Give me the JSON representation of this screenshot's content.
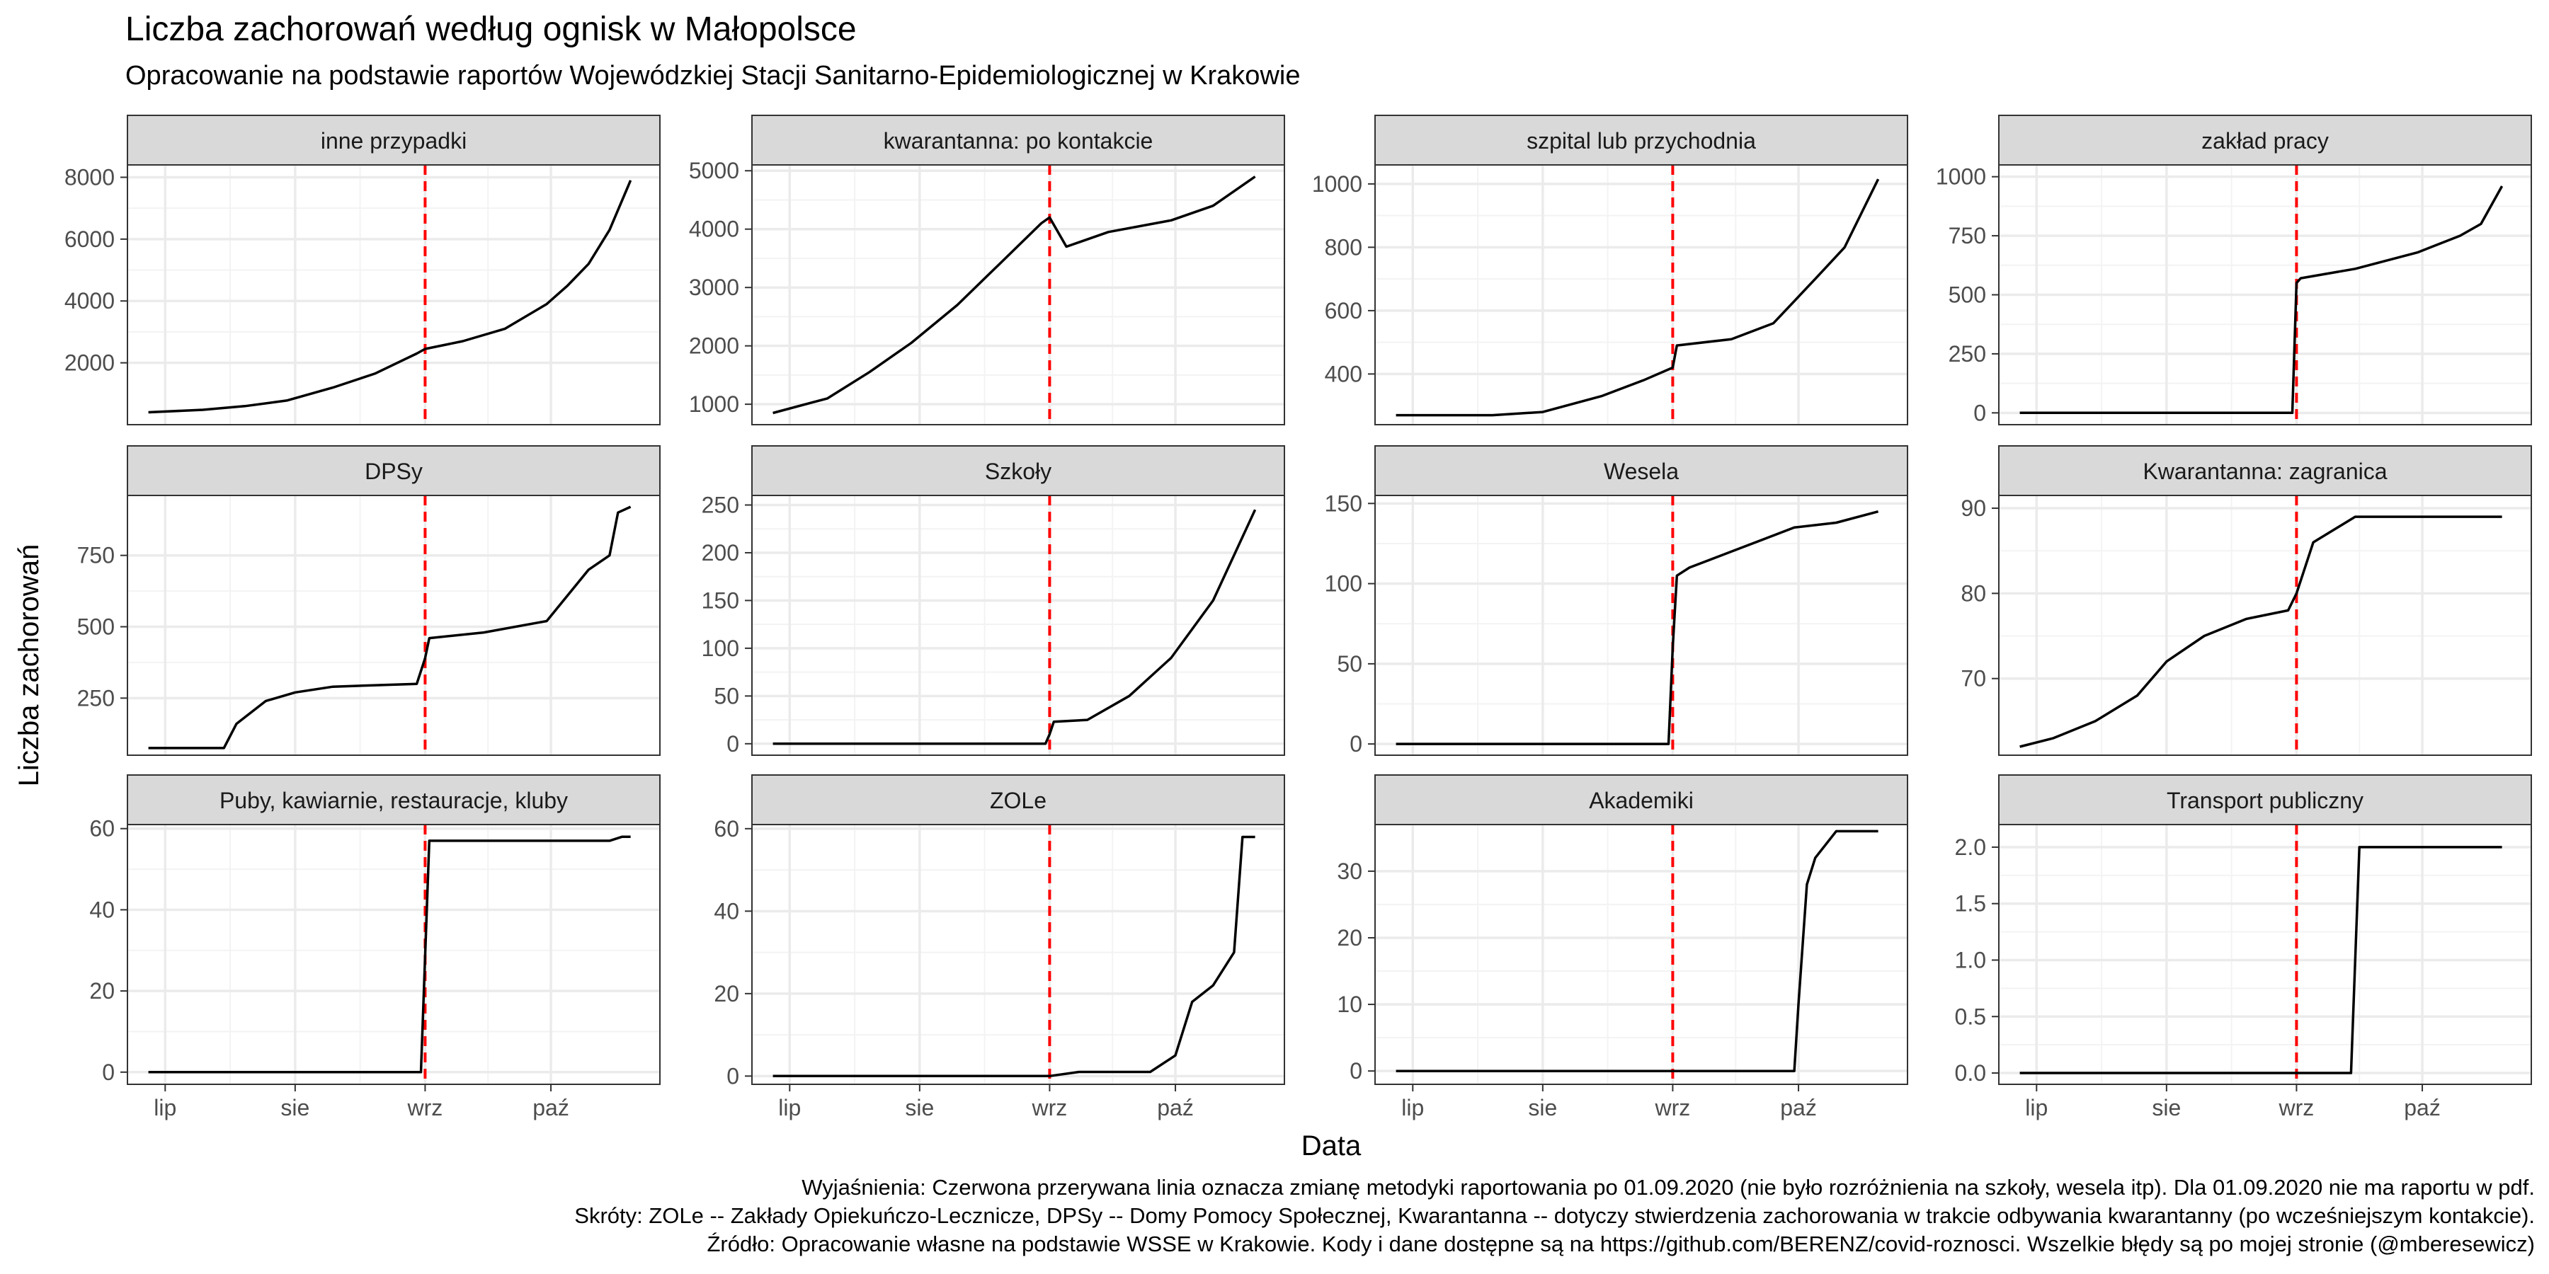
{
  "title": "Liczba zachorowań według ognisk w Małopolsce",
  "subtitle": "Opracowanie na podstawie raportów Wojewódzkiej Stacji Sanitarno-Epidemiologicznej w Krakowie",
  "xlabel": "Data",
  "ylabel": "Liczba zachorowań",
  "caption": [
    "Wyjaśnienia: Czerwona przerywana linia oznacza zmianę metodyki raportowania po 01.09.2020 (nie było rozróżnienia na szkoły, wesela itp). Dla 01.09.2020 nie ma raportu w pdf.",
    "Skróty: ZOLe -- Zakłady Opiekuńczo-Lecznicze, DPSy -- Domy Pomocy Społecznej, Kwarantanna -- dotyczy stwierdzenia zachorowania w trakcie odbywania kwarantanny (po wcześniejszym kontakcie).",
    "Źródło: Opracowanie własne na podstawie WSSE w Krakowie. Kody i dane dostępne są na https://github.com/BERENZ/covid-roznosci. Wszelkie błędy są po mojej stronie (@mberesewicz)"
  ],
  "colors": {
    "line": "#000000",
    "vline": "#ff0000",
    "strip": "#d9d9d9",
    "grid": "#ebebeb"
  },
  "chart_data": {
    "type": "line",
    "x_ticks": [
      {
        "label": "lip",
        "date": "2020-07-01"
      },
      {
        "label": "sie",
        "date": "2020-08-01"
      },
      {
        "label": "wrz",
        "date": "2020-09-01"
      },
      {
        "label": "paź",
        "date": "2020-10-01"
      }
    ],
    "x_range": [
      "2020-06-22",
      "2020-10-27"
    ],
    "vline_date": "2020-09-01",
    "grid": true,
    "panels": [
      {
        "name": "inne przypadki",
        "yticks": [
          2000,
          4000,
          6000,
          8000
        ],
        "ylim": [
          0,
          8400
        ],
        "x": [
          "2020-06-27",
          "2020-07-10",
          "2020-07-20",
          "2020-07-30",
          "2020-08-10",
          "2020-08-20",
          "2020-08-30",
          "2020-09-01",
          "2020-09-10",
          "2020-09-20",
          "2020-09-30",
          "2020-10-05",
          "2020-10-10",
          "2020-10-15",
          "2020-10-20"
        ],
        "y": [
          400,
          480,
          600,
          780,
          1200,
          1650,
          2300,
          2450,
          2700,
          3100,
          3900,
          4500,
          5200,
          6300,
          7900
        ]
      },
      {
        "name": "kwarantanna: po kontakcie",
        "yticks": [
          1000,
          2000,
          3000,
          4000,
          5000
        ],
        "ylim": [
          650,
          5100
        ],
        "x": [
          "2020-06-27",
          "2020-07-10",
          "2020-07-20",
          "2020-07-30",
          "2020-08-10",
          "2020-08-20",
          "2020-08-30",
          "2020-09-01",
          "2020-09-05",
          "2020-09-15",
          "2020-09-30",
          "2020-10-10",
          "2020-10-20"
        ],
        "y": [
          850,
          1100,
          1550,
          2050,
          2700,
          3400,
          4100,
          4200,
          3700,
          3950,
          4150,
          4400,
          4900
        ]
      },
      {
        "name": "szpital lub przychodnia",
        "yticks": [
          400,
          600,
          800,
          1000
        ],
        "ylim": [
          240,
          1060
        ],
        "x": [
          "2020-06-27",
          "2020-07-20",
          "2020-08-01",
          "2020-08-15",
          "2020-08-25",
          "2020-09-01",
          "2020-09-02",
          "2020-09-15",
          "2020-09-25",
          "2020-10-05",
          "2020-10-12",
          "2020-10-20"
        ],
        "y": [
          270,
          270,
          280,
          330,
          380,
          420,
          490,
          510,
          560,
          700,
          800,
          1015
        ]
      },
      {
        "name": "zakład pracy",
        "yticks": [
          0,
          250,
          500,
          750,
          1000
        ],
        "ylim": [
          -50,
          1050
        ],
        "x": [
          "2020-06-27",
          "2020-08-31",
          "2020-09-01",
          "2020-09-02",
          "2020-09-15",
          "2020-09-30",
          "2020-10-10",
          "2020-10-15",
          "2020-10-20"
        ],
        "y": [
          0,
          0,
          550,
          570,
          610,
          680,
          750,
          800,
          960
        ]
      },
      {
        "name": "DPSy",
        "yticks": [
          250,
          500,
          750
        ],
        "ylim": [
          50,
          960
        ],
        "x": [
          "2020-06-27",
          "2020-07-15",
          "2020-07-18",
          "2020-07-25",
          "2020-08-01",
          "2020-08-10",
          "2020-08-30",
          "2020-09-01",
          "2020-09-02",
          "2020-09-15",
          "2020-09-30",
          "2020-10-10",
          "2020-10-15",
          "2020-10-17",
          "2020-10-20"
        ],
        "y": [
          75,
          75,
          160,
          240,
          270,
          290,
          300,
          390,
          460,
          480,
          520,
          700,
          750,
          900,
          920
        ]
      },
      {
        "name": "Szkoły",
        "yticks": [
          0,
          50,
          100,
          150,
          200,
          250
        ],
        "ylim": [
          -12,
          260
        ],
        "x": [
          "2020-06-27",
          "2020-08-31",
          "2020-09-01",
          "2020-09-02",
          "2020-09-10",
          "2020-09-20",
          "2020-09-30",
          "2020-10-10",
          "2020-10-20"
        ],
        "y": [
          0,
          0,
          10,
          23,
          25,
          50,
          90,
          150,
          245
        ]
      },
      {
        "name": "Wesela",
        "yticks": [
          0,
          50,
          100,
          150
        ],
        "ylim": [
          -7,
          155
        ],
        "x": [
          "2020-06-27",
          "2020-08-31",
          "2020-09-01",
          "2020-09-02",
          "2020-09-05",
          "2020-09-15",
          "2020-09-30",
          "2020-10-10",
          "2020-10-20"
        ],
        "y": [
          0,
          0,
          60,
          105,
          110,
          120,
          135,
          138,
          145
        ]
      },
      {
        "name": "Kwarantanna: zagranica",
        "yticks": [
          70,
          80,
          90
        ],
        "ylim": [
          61,
          91.5
        ],
        "x": [
          "2020-06-27",
          "2020-07-05",
          "2020-07-15",
          "2020-07-25",
          "2020-08-01",
          "2020-08-10",
          "2020-08-20",
          "2020-08-30",
          "2020-09-01",
          "2020-09-05",
          "2020-09-15",
          "2020-10-20"
        ],
        "y": [
          62,
          63,
          65,
          68,
          72,
          75,
          77,
          78,
          80,
          86,
          89,
          89
        ]
      },
      {
        "name": "Puby, kawiarnie, restauracje, kluby",
        "yticks": [
          0,
          20,
          40,
          60
        ],
        "ylim": [
          -3,
          61
        ],
        "x": [
          "2020-06-27",
          "2020-08-31",
          "2020-09-02",
          "2020-10-15",
          "2020-10-18",
          "2020-10-20"
        ],
        "y": [
          0,
          0,
          57,
          57,
          58,
          58
        ]
      },
      {
        "name": "ZOLe",
        "yticks": [
          0,
          20,
          40,
          60
        ],
        "ylim": [
          -2,
          61
        ],
        "x": [
          "2020-06-27",
          "2020-09-01",
          "2020-09-08",
          "2020-09-25",
          "2020-10-01",
          "2020-10-05",
          "2020-10-10",
          "2020-10-15",
          "2020-10-17",
          "2020-10-20"
        ],
        "y": [
          0,
          0,
          1,
          1,
          5,
          18,
          22,
          30,
          58,
          58
        ]
      },
      {
        "name": "Akademiki",
        "yticks": [
          0,
          10,
          20,
          30
        ],
        "ylim": [
          -2,
          37
        ],
        "x": [
          "2020-06-27",
          "2020-09-30",
          "2020-10-01",
          "2020-10-03",
          "2020-10-05",
          "2020-10-10",
          "2020-10-15",
          "2020-10-20"
        ],
        "y": [
          0,
          0,
          10,
          28,
          32,
          36,
          36,
          36
        ]
      },
      {
        "name": "Transport publiczny",
        "yticks": [
          0.0,
          0.5,
          1.0,
          1.5,
          2.0
        ],
        "ylim": [
          -0.1,
          2.2
        ],
        "x": [
          "2020-06-27",
          "2020-09-14",
          "2020-09-16",
          "2020-10-20"
        ],
        "y": [
          0,
          0,
          2,
          2
        ]
      }
    ]
  }
}
